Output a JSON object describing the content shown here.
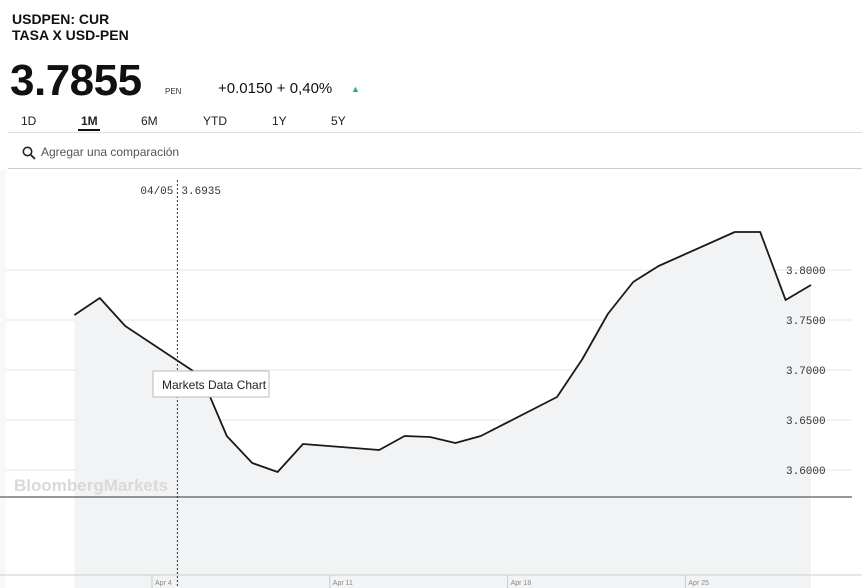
{
  "header": {
    "ticker": "USDPEN: CUR",
    "subtitle": "TASA X USD-PEN",
    "price": "3.7855",
    "currency": "PEN",
    "change": "+0.0150 + 0,40%"
  },
  "range_tabs": [
    "1D",
    "1M",
    "6M",
    "YTD",
    "1Y",
    "5Y"
  ],
  "active_range": "1M",
  "search": {
    "placeholder": "Agregar una comparación"
  },
  "crosshair": {
    "date": "04/05",
    "value": "3.6935"
  },
  "tooltip": "Markets Data Chart",
  "watermark": "BloombergMarkets",
  "colors": {
    "line": "#1a1a1a",
    "area": "#f2f3f5",
    "up": "#1fb574",
    "grid": "#e4e4e4"
  },
  "chart_data": {
    "type": "area",
    "x_tick_labels": [
      "Apr 4",
      "Apr 11",
      "Apr 18",
      "Apr 25"
    ],
    "y_tick_labels": [
      "3.8000",
      "3.7500",
      "3.7000",
      "3.6500",
      "3.6000"
    ],
    "ylim": [
      3.57,
      3.85
    ],
    "grid": true,
    "series": [
      {
        "x": [
          "2016-03-31",
          "2016-04-01",
          "2016-04-02",
          "2016-04-05",
          "2016-04-06",
          "2016-04-07",
          "2016-04-08",
          "2016-04-09",
          "2016-04-12",
          "2016-04-13",
          "2016-04-14",
          "2016-04-15",
          "2016-04-16",
          "2016-04-19",
          "2016-04-20",
          "2016-04-21",
          "2016-04-22",
          "2016-04-23",
          "2016-04-26",
          "2016-04-27",
          "2016-04-28",
          "2016-04-29"
        ],
        "values": [
          3.755,
          3.772,
          3.744,
          3.6935,
          3.634,
          3.607,
          3.598,
          3.626,
          3.62,
          3.634,
          3.633,
          3.627,
          3.634,
          3.673,
          3.711,
          3.756,
          3.788,
          3.804,
          3.838,
          3.838,
          3.77,
          3.785
        ]
      }
    ]
  }
}
